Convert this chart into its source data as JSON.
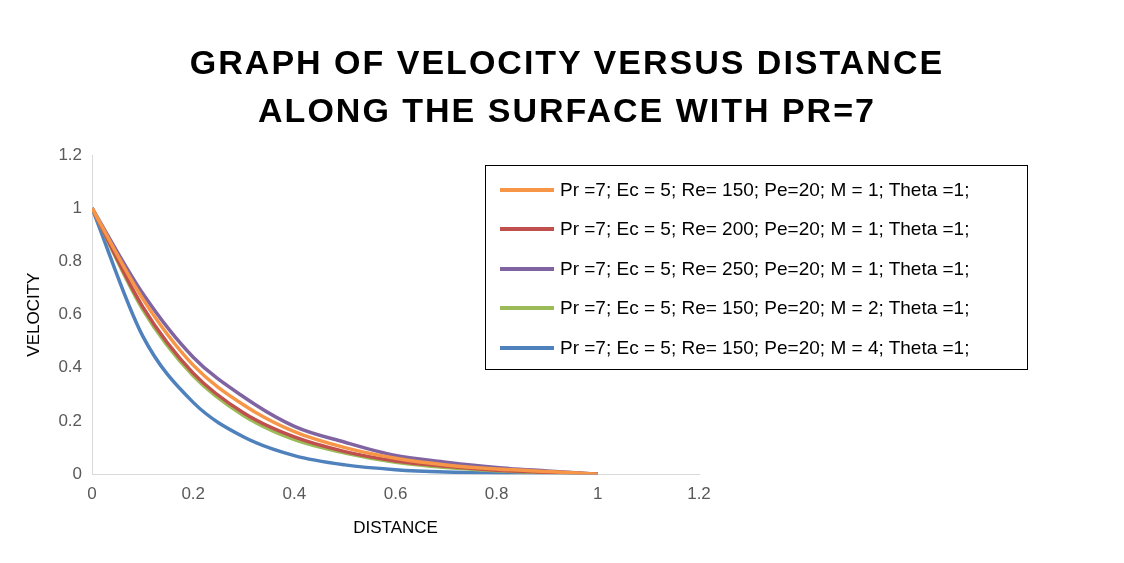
{
  "chart_data": {
    "type": "line",
    "title": "GRAPH OF VELOCITY VERSUS DISTANCE ALONG THE SURFACE WITH PR=7",
    "xlabel": "DISTANCE",
    "ylabel": "VELOCITY",
    "x": [
      0,
      0.1,
      0.2,
      0.3,
      0.4,
      0.5,
      0.6,
      0.7,
      0.8,
      0.9,
      1
    ],
    "series": [
      {
        "name": "Pr =7; Ec = 5; Re= 150; Pe=20; M = 1; Theta =1;",
        "color": "#f79646",
        "values": [
          1,
          0.66,
          0.41,
          0.26,
          0.16,
          0.1,
          0.06,
          0.035,
          0.02,
          0.01,
          0
        ]
      },
      {
        "name": "Pr =7; Ec = 5; Re= 200; Pe=20; M = 1; Theta =1;",
        "color": "#c0504d",
        "values": [
          1,
          0.63,
          0.38,
          0.23,
          0.14,
          0.085,
          0.05,
          0.03,
          0.015,
          0.007,
          0
        ]
      },
      {
        "name": "Pr =7; Ec = 5; Re= 250; Pe=20; M = 1; Theta =1;",
        "color": "#8064a2",
        "values": [
          1,
          0.68,
          0.44,
          0.29,
          0.18,
          0.12,
          0.07,
          0.045,
          0.025,
          0.012,
          0
        ]
      },
      {
        "name": "Pr =7; Ec = 5; Re= 150; Pe=20; M = 2; Theta =1;",
        "color": "#9bbb59",
        "values": [
          1,
          0.62,
          0.37,
          0.22,
          0.13,
          0.08,
          0.045,
          0.025,
          0.013,
          0.006,
          0
        ]
      },
      {
        "name": "Pr =7; Ec = 5; Re= 150; Pe=20; M = 4; Theta =1;",
        "color": "#4f81bd",
        "values": [
          1,
          0.52,
          0.27,
          0.14,
          0.07,
          0.035,
          0.017,
          0.008,
          0.004,
          0.002,
          0
        ]
      }
    ],
    "xlim": [
      0,
      1.2
    ],
    "xticks": [
      0,
      0.2,
      0.4,
      0.6,
      0.8,
      1,
      1.2
    ],
    "ylim": [
      0,
      1.2
    ],
    "yticks": [
      0,
      0.2,
      0.4,
      0.6,
      0.8,
      1,
      1.2
    ],
    "grid": false,
    "legend": "right",
    "marker": "none",
    "line_style": "solid"
  }
}
